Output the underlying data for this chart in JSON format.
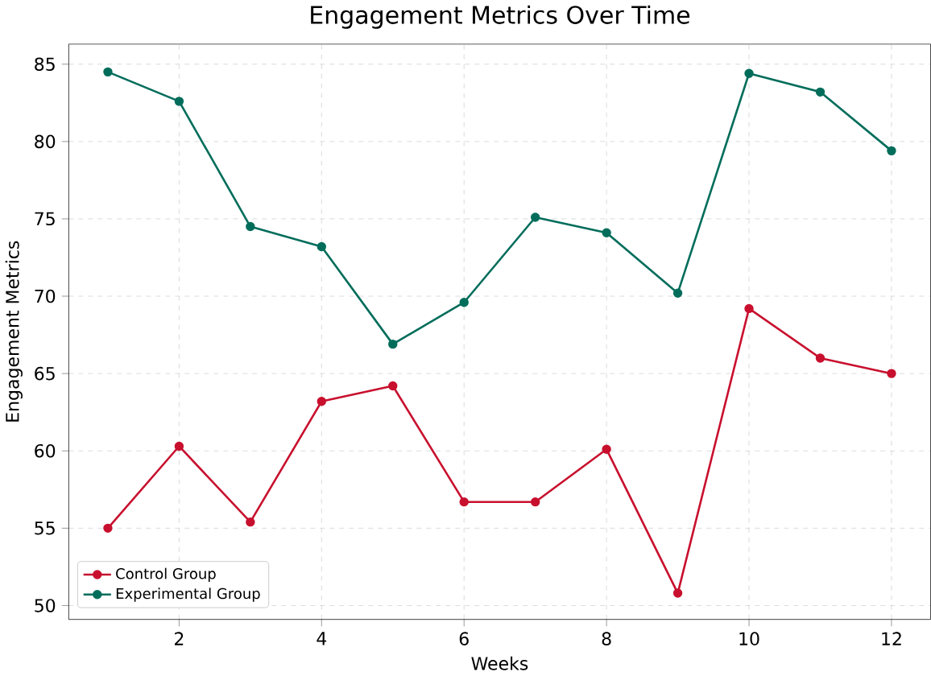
{
  "chart_data": {
    "type": "line",
    "title": "Engagement Metrics Over Time",
    "xlabel": "Weeks",
    "ylabel": "Engagement Metrics",
    "x": [
      1,
      2,
      3,
      4,
      5,
      6,
      7,
      8,
      9,
      10,
      11,
      12
    ],
    "series": [
      {
        "name": "Control Group",
        "color": "#c8102e",
        "values": [
          55.0,
          60.3,
          55.4,
          63.2,
          64.2,
          56.7,
          56.7,
          60.1,
          50.8,
          69.2,
          66.0,
          65.0
        ]
      },
      {
        "name": "Experimental Group",
        "color": "#006d5b",
        "values": [
          84.5,
          82.6,
          74.5,
          73.2,
          66.9,
          69.6,
          75.1,
          74.1,
          70.2,
          84.4,
          83.2,
          79.4
        ]
      }
    ],
    "xlim": [
      0.45,
      12.55
    ],
    "ylim": [
      49.1,
      86.3
    ],
    "xticks": [
      2,
      4,
      6,
      8,
      10,
      12
    ],
    "yticks": [
      50,
      55,
      60,
      65,
      70,
      75,
      80,
      85
    ],
    "grid": true,
    "legend": "bottom left",
    "marker": "circle",
    "line_style": "solid"
  }
}
